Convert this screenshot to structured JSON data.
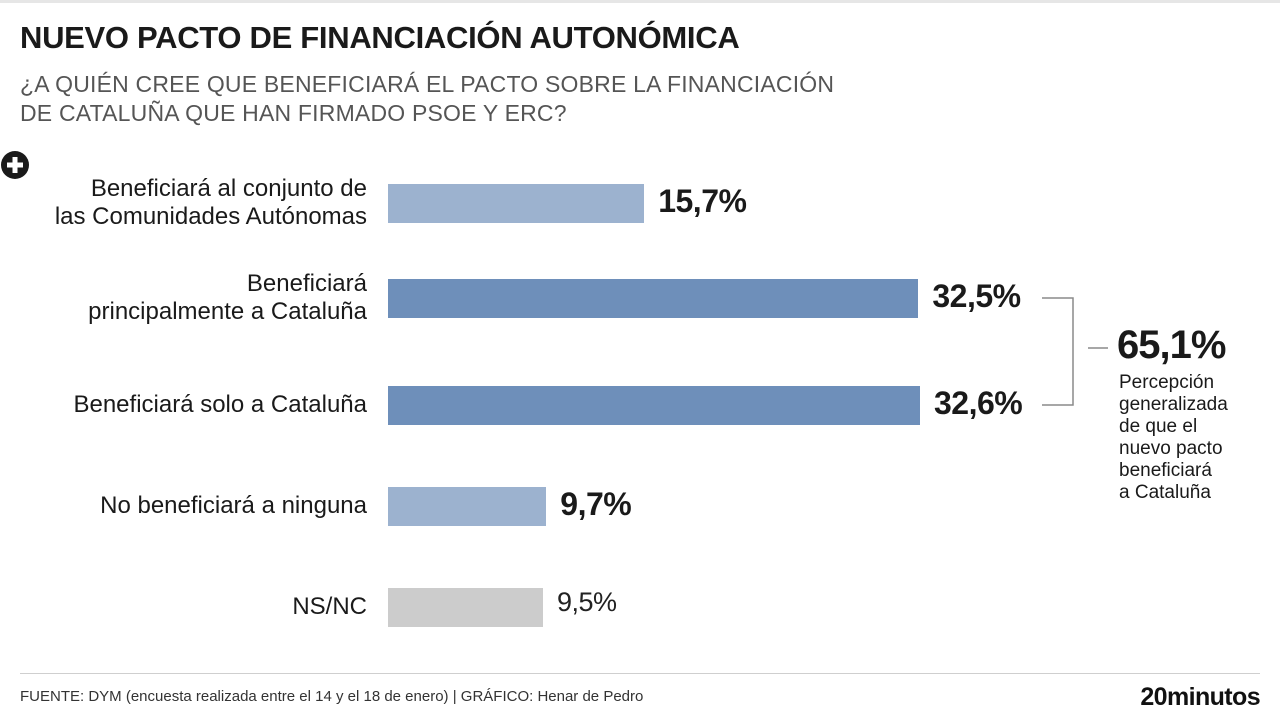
{
  "header": {
    "title": "NUEVO PACTO DE FINANCIACIÓN AUTONÓMICA",
    "subtitle_line1": "¿A QUIÉN CREE QUE BENEFICIARÁ EL PACTO SOBRE LA FINANCIACIÓN",
    "subtitle_line2": "DE CATALUÑA QUE HAN FIRMADO PSOE Y ERC?"
  },
  "chart_data": {
    "type": "bar",
    "orientation": "horizontal",
    "categories": [
      [
        "Beneficiará al conjunto de",
        "las Comunidades Autónomas"
      ],
      [
        "Beneficiará",
        "principalmente a Cataluña"
      ],
      [
        "Beneficiará solo a Cataluña"
      ],
      [
        "No beneficiará a ninguna"
      ],
      [
        "NS/NC"
      ]
    ],
    "values": [
      15.7,
      32.5,
      32.6,
      9.7,
      9.5
    ],
    "value_labels": [
      "15,7%",
      "32,5%",
      "32,6%",
      "9,7%",
      "9,5%"
    ],
    "bar_colors": [
      "#9cb2cf",
      "#6e8fba",
      "#6e8fba",
      "#9cb2cf",
      "#cccccc"
    ],
    "xlim": [
      0,
      32.6
    ],
    "grid": false,
    "legend": false,
    "annotation": {
      "total": "65,1%",
      "note": [
        "Percepción",
        "generalizada",
        "de que el",
        "nuevo pacto",
        "beneficiará",
        "a Cataluña"
      ],
      "icon": "plus-circle-icon"
    }
  },
  "footer": {
    "source": "FUENTE: DYM (encuesta realizada entre el 14 y el 18 de enero)  |  GRÁFICO: Henar de Pedro",
    "logo": "20minutos"
  }
}
